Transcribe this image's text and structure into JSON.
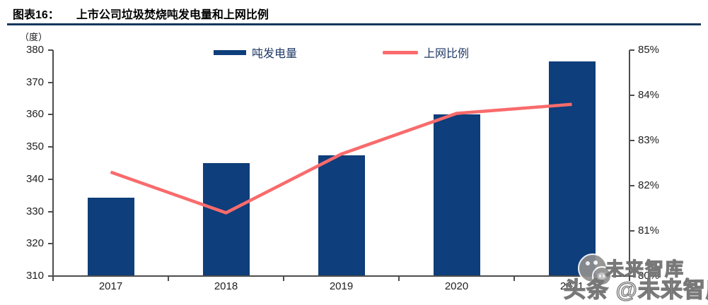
{
  "header": {
    "figure_label": "图表16：",
    "title": "上市公司垃圾焚烧吨发电量和上网比例"
  },
  "unit_label": "（度）",
  "legend": [
    {
      "label": "吨发电量",
      "type": "bar",
      "color": "#0e3e7b"
    },
    {
      "label": "上网比例",
      "type": "line",
      "color": "#f96b6c"
    }
  ],
  "watermark": {
    "small": "未来智库",
    "large": "头条 @未来智库",
    "face_icon": "pig-face-icon"
  },
  "chart_data": {
    "type": "bar",
    "subtype": "bar-line-combo",
    "title": "上市公司垃圾焚烧吨发电量和上网比例",
    "categories": [
      "2017",
      "2018",
      "2019",
      "2020",
      "2021"
    ],
    "series": [
      {
        "name": "吨发电量",
        "type": "bar",
        "axis": "left",
        "unit": "度",
        "color": "#0e3e7b",
        "values": [
          334.3,
          345.0,
          347.5,
          360.0,
          376.5
        ]
      },
      {
        "name": "上网比例",
        "type": "line",
        "axis": "right",
        "unit": "%",
        "color": "#f96b6c",
        "values": [
          82.3,
          81.4,
          82.7,
          83.6,
          83.8
        ]
      }
    ],
    "left_axis": {
      "label": "（度）",
      "min": 310,
      "max": 380,
      "step": 10,
      "ticks": [
        "310",
        "320",
        "330",
        "340",
        "350",
        "360",
        "370",
        "380"
      ]
    },
    "right_axis": {
      "min": 80,
      "max": 85,
      "step": 1,
      "ticks": [
        "80%",
        "81%",
        "82%",
        "83%",
        "84%",
        "85%"
      ]
    },
    "legend_position": "top-center",
    "grid": false
  }
}
